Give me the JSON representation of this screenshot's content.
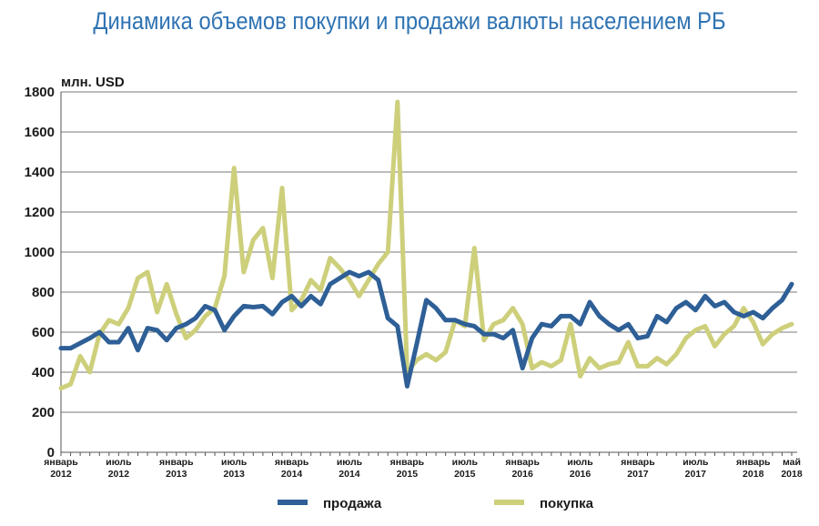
{
  "chart_data": {
    "type": "line",
    "title": "Динамика объемов покупки и продажи валюты населением РБ",
    "ylabel": "млн. USD",
    "xlabel": "",
    "ylim": [
      0,
      1800
    ],
    "yticks": [
      0,
      200,
      400,
      600,
      800,
      1000,
      1200,
      1400,
      1600,
      1800
    ],
    "grid": true,
    "legend": "bottom",
    "x_tick_labels": [
      {
        "index": 0,
        "line1": "январь",
        "line2": "2012"
      },
      {
        "index": 6,
        "line1": "июль",
        "line2": "2012"
      },
      {
        "index": 12,
        "line1": "январь",
        "line2": "2013"
      },
      {
        "index": 18,
        "line1": "июль",
        "line2": "2013"
      },
      {
        "index": 24,
        "line1": "январь",
        "line2": "2014"
      },
      {
        "index": 30,
        "line1": "июль",
        "line2": "2014"
      },
      {
        "index": 36,
        "line1": "январь",
        "line2": "2015"
      },
      {
        "index": 42,
        "line1": "июль",
        "line2": "2015"
      },
      {
        "index": 48,
        "line1": "январь",
        "line2": "2016"
      },
      {
        "index": 54,
        "line1": "июль",
        "line2": "2016"
      },
      {
        "index": 60,
        "line1": "январь",
        "line2": "2017"
      },
      {
        "index": 66,
        "line1": "июль",
        "line2": "2017"
      },
      {
        "index": 72,
        "line1": "январь",
        "line2": "2018"
      },
      {
        "index": 76,
        "line1": "май",
        "line2": "2018"
      }
    ],
    "series": [
      {
        "name": "продажа",
        "color": "#2e5f96",
        "values": [
          520,
          520,
          545,
          570,
          600,
          550,
          550,
          620,
          510,
          620,
          610,
          560,
          620,
          640,
          670,
          730,
          710,
          610,
          680,
          730,
          725,
          730,
          690,
          750,
          780,
          730,
          780,
          740,
          840,
          870,
          900,
          880,
          900,
          860,
          670,
          630,
          330,
          540,
          760,
          720,
          660,
          660,
          640,
          630,
          590,
          590,
          570,
          610,
          420,
          570,
          640,
          630,
          680,
          680,
          640,
          750,
          680,
          640,
          610,
          640,
          570,
          580,
          680,
          650,
          720,
          750,
          710,
          780,
          730,
          750,
          700,
          680,
          700,
          670,
          720,
          760,
          840
        ]
      },
      {
        "name": "покупка",
        "color": "#cdcf7b",
        "values": [
          320,
          340,
          480,
          400,
          590,
          660,
          640,
          720,
          870,
          900,
          700,
          840,
          690,
          570,
          610,
          680,
          720,
          880,
          1420,
          900,
          1060,
          1120,
          870,
          1320,
          710,
          760,
          860,
          810,
          970,
          920,
          860,
          780,
          860,
          940,
          1000,
          1750,
          400,
          460,
          490,
          460,
          500,
          660,
          630,
          1020,
          560,
          640,
          660,
          720,
          640,
          420,
          450,
          430,
          460,
          640,
          380,
          470,
          420,
          440,
          450,
          550,
          430,
          430,
          470,
          440,
          490,
          570,
          610,
          630,
          530,
          590,
          630,
          720,
          650,
          540,
          590,
          620,
          640
        ]
      }
    ]
  }
}
